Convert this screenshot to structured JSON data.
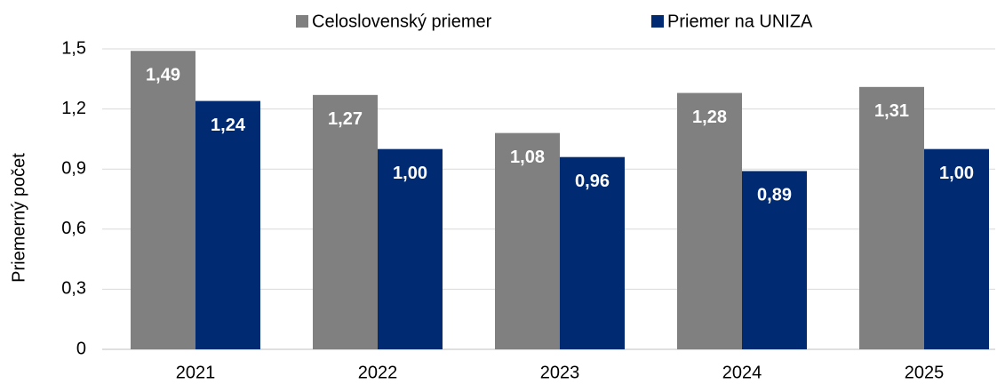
{
  "chart_data": {
    "type": "bar",
    "y_label": "Priemerný počet",
    "categories": [
      "2021",
      "2022",
      "2023",
      "2024",
      "2025"
    ],
    "series": [
      {
        "name": "Celoslovenský priemer",
        "color": "#808080",
        "values": [
          1.49,
          1.27,
          1.08,
          1.28,
          1.31
        ],
        "value_labels": [
          "1,49",
          "1,27",
          "1,08",
          "1,28",
          "1,31"
        ]
      },
      {
        "name": "Priemer na UNIZA",
        "color": "#002b73",
        "values": [
          1.24,
          1.0,
          0.96,
          0.89,
          1.0
        ],
        "value_labels": [
          "1,24",
          "1,00",
          "0,96",
          "0,89",
          "1,00"
        ]
      }
    ],
    "ylim": [
      0,
      1.5
    ],
    "yticks": [
      0,
      {
        "value": 0.3,
        "label": "0,3"
      },
      {
        "value": 0.6,
        "label": "0,6"
      },
      {
        "value": 0.9,
        "label": "0,9"
      },
      {
        "value": 1.2,
        "label": "1,2"
      },
      {
        "value": 1.5,
        "label": "1,5"
      }
    ],
    "grid": true,
    "legend": "top"
  }
}
